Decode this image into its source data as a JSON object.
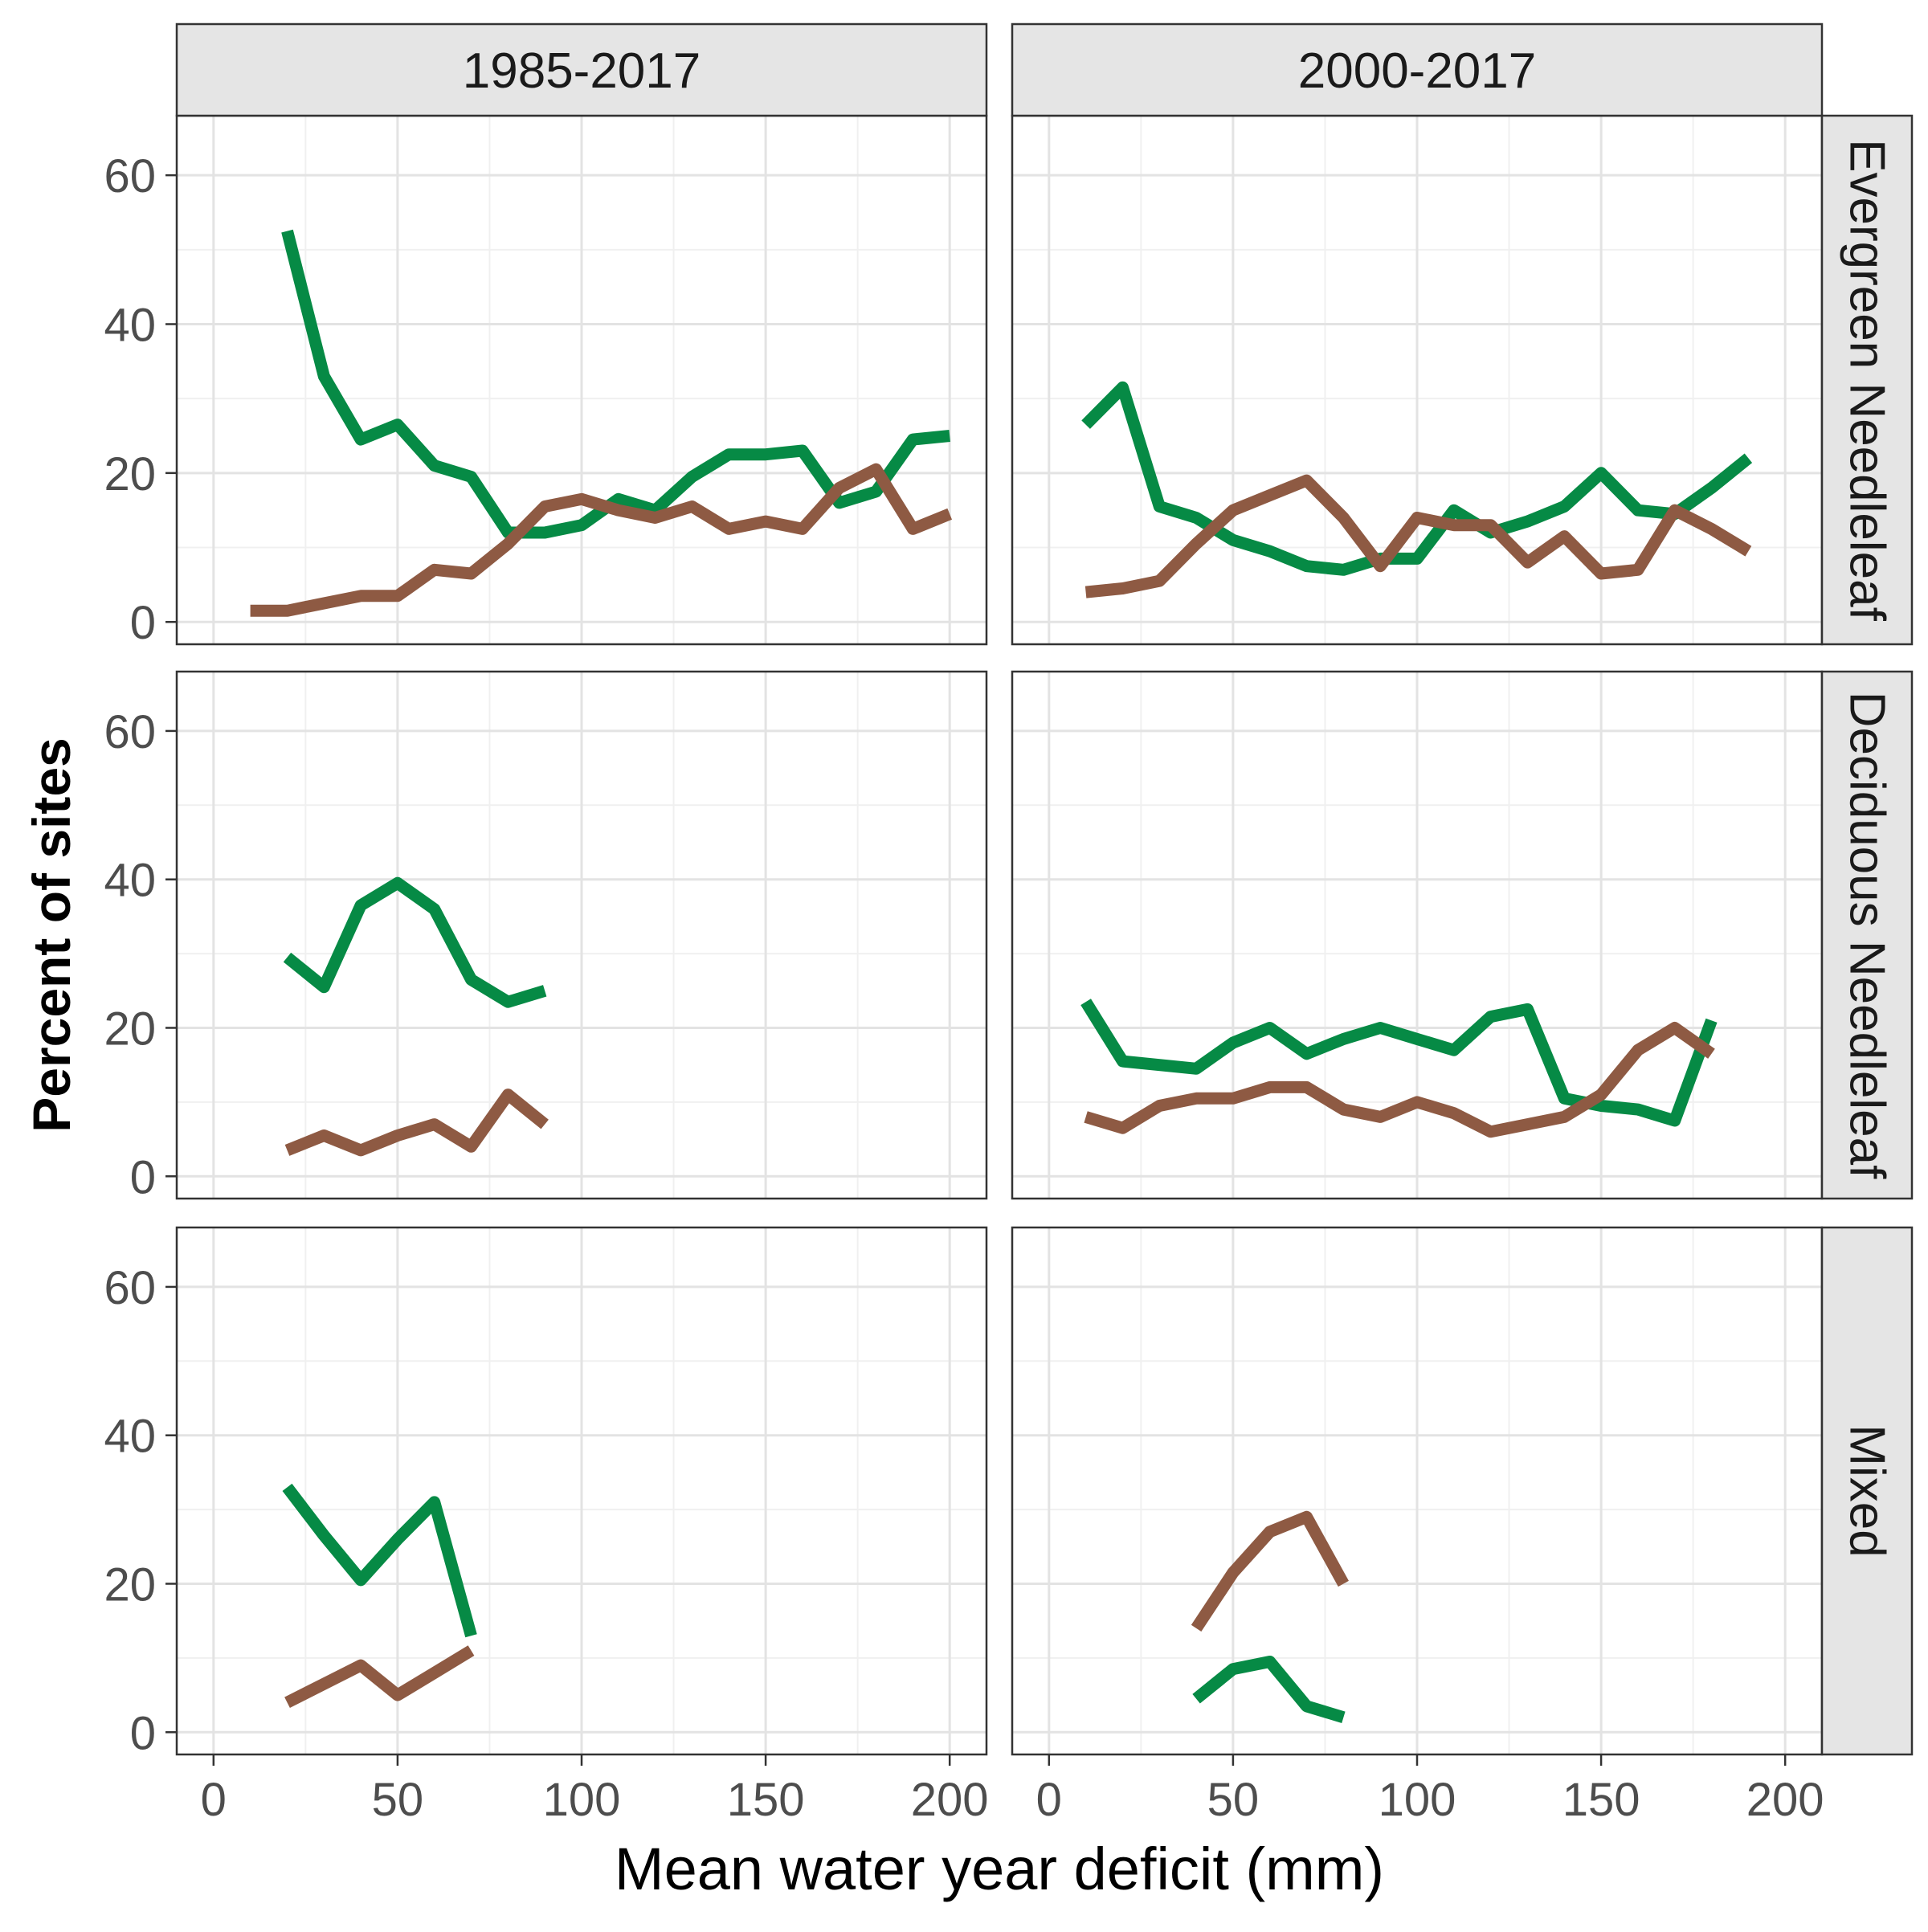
{
  "chart_data": {
    "type": "line",
    "xlabel": "Mean water year deficit (mm)",
    "ylabel": "Percent of sites",
    "xlim": [
      -10,
      210
    ],
    "ylim": [
      -3,
      68
    ],
    "x_ticks": [
      0,
      50,
      100,
      150,
      200
    ],
    "y_ticks": [
      0,
      20,
      40,
      60
    ],
    "grid": true,
    "legend": "none",
    "colors": {
      "green": "#068a45",
      "brown": "#8e5a43"
    },
    "columns": [
      "1985-2017",
      "2000-2017"
    ],
    "rows": [
      "Evergreen Needleleaf",
      "Deciduous Needleleaf",
      "Mixed"
    ],
    "panels": [
      {
        "row": "Evergreen Needleleaf",
        "column": "1985-2017",
        "series": [
          {
            "color": "green",
            "points": [
              [
                20,
                52.5
              ],
              [
                30,
                33
              ],
              [
                40,
                24.5
              ],
              [
                50,
                26.5
              ],
              [
                60,
                21
              ],
              [
                70,
                19.5
              ],
              [
                80,
                12
              ],
              [
                90,
                12
              ],
              [
                100,
                13
              ],
              [
                110,
                16.5
              ],
              [
                120,
                15
              ],
              [
                130,
                19.5
              ],
              [
                140,
                22.5
              ],
              [
                150,
                22.5
              ],
              [
                160,
                23
              ],
              [
                170,
                16
              ],
              [
                180,
                17.5
              ],
              [
                190,
                24.5
              ],
              [
                200,
                25
              ]
            ]
          },
          {
            "color": "brown",
            "points": [
              [
                10,
                1.5
              ],
              [
                20,
                1.5
              ],
              [
                30,
                2.5
              ],
              [
                40,
                3.5
              ],
              [
                50,
                3.5
              ],
              [
                60,
                7
              ],
              [
                70,
                6.5
              ],
              [
                80,
                10.5
              ],
              [
                90,
                15.5
              ],
              [
                100,
                16.5
              ],
              [
                110,
                15
              ],
              [
                120,
                14
              ],
              [
                130,
                15.5
              ],
              [
                140,
                12.5
              ],
              [
                150,
                13.5
              ],
              [
                160,
                12.5
              ],
              [
                170,
                18
              ],
              [
                180,
                20.5
              ],
              [
                190,
                12.5
              ],
              [
                200,
                14.5
              ]
            ]
          }
        ]
      },
      {
        "row": "Evergreen Needleleaf",
        "column": "2000-2017",
        "series": [
          {
            "color": "green",
            "points": [
              [
                10,
                26.5
              ],
              [
                20,
                31.5
              ],
              [
                30,
                15.5
              ],
              [
                40,
                14
              ],
              [
                50,
                11
              ],
              [
                60,
                9.5
              ],
              [
                70,
                7.5
              ],
              [
                80,
                7
              ],
              [
                90,
                8.5
              ],
              [
                100,
                8.5
              ],
              [
                110,
                15
              ],
              [
                120,
                12
              ],
              [
                130,
                13.5
              ],
              [
                140,
                15.5
              ],
              [
                150,
                20
              ],
              [
                160,
                15
              ],
              [
                170,
                14.5
              ],
              [
                180,
                18
              ],
              [
                190,
                22
              ]
            ]
          },
          {
            "color": "brown",
            "points": [
              [
                10,
                4
              ],
              [
                20,
                4.5
              ],
              [
                30,
                5.5
              ],
              [
                40,
                10.5
              ],
              [
                50,
                15
              ],
              [
                60,
                17
              ],
              [
                70,
                19
              ],
              [
                80,
                14
              ],
              [
                90,
                7.5
              ],
              [
                100,
                14
              ],
              [
                110,
                13
              ],
              [
                120,
                13
              ],
              [
                130,
                8
              ],
              [
                140,
                11.5
              ],
              [
                150,
                6.5
              ],
              [
                160,
                7
              ],
              [
                170,
                15
              ],
              [
                180,
                12.5
              ],
              [
                190,
                9.5
              ]
            ]
          }
        ]
      },
      {
        "row": "Deciduous Needleleaf",
        "column": "1985-2017",
        "series": [
          {
            "color": "green",
            "points": [
              [
                20,
                29.5
              ],
              [
                30,
                25.5
              ],
              [
                40,
                36.5
              ],
              [
                50,
                39.5
              ],
              [
                60,
                36
              ],
              [
                70,
                26.5
              ],
              [
                80,
                23.5
              ],
              [
                90,
                25
              ]
            ]
          },
          {
            "color": "brown",
            "points": [
              [
                20,
                3.5
              ],
              [
                30,
                5.5
              ],
              [
                40,
                3.5
              ],
              [
                50,
                5.5
              ],
              [
                60,
                7
              ],
              [
                70,
                4
              ],
              [
                80,
                11
              ],
              [
                90,
                7
              ]
            ]
          }
        ]
      },
      {
        "row": "Deciduous Needleleaf",
        "column": "2000-2017",
        "series": [
          {
            "color": "green",
            "points": [
              [
                10,
                23.5
              ],
              [
                20,
                15.5
              ],
              [
                30,
                15
              ],
              [
                40,
                14.5
              ],
              [
                50,
                18
              ],
              [
                60,
                20
              ],
              [
                70,
                16.5
              ],
              [
                80,
                18.5
              ],
              [
                90,
                20
              ],
              [
                100,
                18.5
              ],
              [
                110,
                17
              ],
              [
                120,
                21.5
              ],
              [
                130,
                22.5
              ],
              [
                140,
                10.5
              ],
              [
                150,
                9.5
              ],
              [
                160,
                9
              ],
              [
                170,
                7.5
              ],
              [
                180,
                21
              ]
            ]
          },
          {
            "color": "brown",
            "points": [
              [
                10,
                8
              ],
              [
                20,
                6.5
              ],
              [
                30,
                9.5
              ],
              [
                40,
                10.5
              ],
              [
                50,
                10.5
              ],
              [
                60,
                12
              ],
              [
                70,
                12
              ],
              [
                80,
                9
              ],
              [
                90,
                8
              ],
              [
                100,
                10
              ],
              [
                110,
                8.5
              ],
              [
                120,
                6
              ],
              [
                130,
                7
              ],
              [
                140,
                8
              ],
              [
                150,
                11
              ],
              [
                160,
                17
              ],
              [
                170,
                20
              ],
              [
                180,
                16.5
              ]
            ]
          }
        ]
      },
      {
        "row": "Mixed",
        "column": "1985-2017",
        "series": [
          {
            "color": "green",
            "points": [
              [
                20,
                33
              ],
              [
                30,
                26.5
              ],
              [
                40,
                20.5
              ],
              [
                50,
                26
              ],
              [
                60,
                31
              ],
              [
                70,
                13
              ]
            ]
          },
          {
            "color": "brown",
            "points": [
              [
                20,
                4
              ],
              [
                30,
                6.5
              ],
              [
                40,
                9
              ],
              [
                50,
                5
              ],
              [
                60,
                8
              ],
              [
                70,
                11
              ]
            ]
          }
        ]
      },
      {
        "row": "Mixed",
        "column": "2000-2017",
        "series": [
          {
            "color": "green",
            "points": [
              [
                40,
                4.5
              ],
              [
                50,
                8.5
              ],
              [
                60,
                9.5
              ],
              [
                70,
                3.5
              ],
              [
                80,
                2
              ]
            ]
          },
          {
            "color": "brown",
            "points": [
              [
                40,
                14
              ],
              [
                50,
                21.5
              ],
              [
                60,
                27
              ],
              [
                70,
                29
              ],
              [
                80,
                20
              ]
            ]
          }
        ]
      }
    ]
  }
}
